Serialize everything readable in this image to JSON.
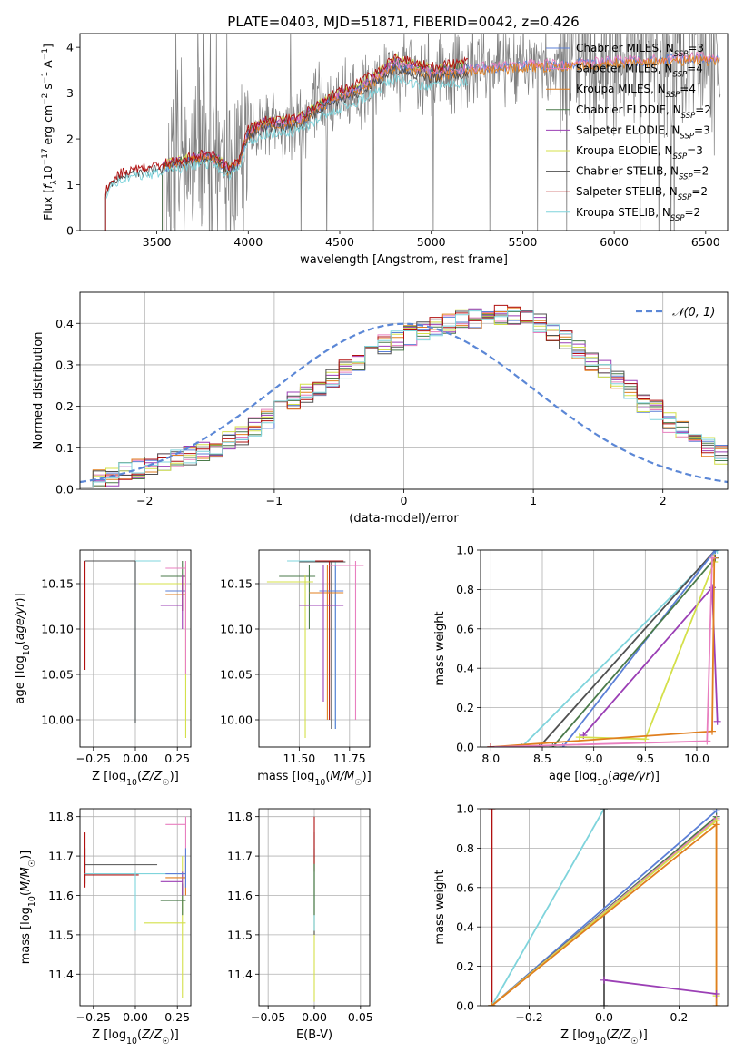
{
  "figure_title": "PLATE=0403, MJD=51871, FIBERID=0042, z=0.426",
  "colors": {
    "chabrier_miles": "#5b7fd6",
    "salpeter_miles": "#e87fbf",
    "kroupa_miles": "#e07f1f",
    "chabrier_elodie": "#4a7a4a",
    "salpeter_elodie": "#9b3fb5",
    "kroupa_elodie": "#d4e04a",
    "chabrier_stelib": "#505050",
    "salpeter_stelib": "#b01010",
    "kroupa_stelib": "#7fd4dc",
    "data_spectrum": "#808080",
    "normal_curve": "#5b87d6"
  },
  "legend_spectrum": [
    {
      "label": "Chabrier MILES, N",
      "sub": "SSP",
      "tail": "=3",
      "color": "#5b7fd6"
    },
    {
      "label": "Salpeter MILES, N",
      "sub": "SSP",
      "tail": "=4",
      "color": "#e87fbf"
    },
    {
      "label": "Kroupa MILES, N",
      "sub": "SSP",
      "tail": "=4",
      "color": "#e07f1f"
    },
    {
      "label": "Chabrier ELODIE, N",
      "sub": "SSP",
      "tail": "=2",
      "color": "#4a7a4a"
    },
    {
      "label": "Salpeter ELODIE, N",
      "sub": "SSP",
      "tail": "=3",
      "color": "#9b3fb5"
    },
    {
      "label": "Kroupa ELODIE, N",
      "sub": "SSP",
      "tail": "=3",
      "color": "#d4e04a"
    },
    {
      "label": "Chabrier STELIB, N",
      "sub": "SSP",
      "tail": "=2",
      "color": "#505050"
    },
    {
      "label": "Salpeter STELIB, N",
      "sub": "SSP",
      "tail": "=2",
      "color": "#b01010"
    },
    {
      "label": "Kroupa STELIB, N",
      "sub": "SSP",
      "tail": "=2",
      "color": "#7fd4dc"
    }
  ],
  "chart_data": [
    {
      "id": "spectrum",
      "type": "line",
      "xlabel": "wavelength [Angstrom, rest frame]",
      "ylabel": "Flux [f_λ 10^-17 erg cm^-2 s^-1 A^-1]",
      "xlim": [
        3080,
        6620
      ],
      "ylim": [
        0,
        4.3
      ],
      "xticks": [
        3500,
        4000,
        4500,
        5000,
        5500,
        6000,
        6500
      ],
      "yticks": [
        0,
        1,
        2,
        3,
        4
      ],
      "model_continuum": {
        "x": [
          3220,
          3300,
          3400,
          3500,
          3600,
          3700,
          3800,
          3900,
          3950,
          4000,
          4100,
          4200,
          4300,
          4400,
          4500,
          4600,
          4700,
          4800,
          4900,
          5000,
          5100,
          5200,
          5300,
          5400,
          5500,
          5600,
          5700,
          5800,
          5900,
          6000,
          6100,
          6200,
          6300,
          6400,
          6500
        ],
        "y": [
          0.85,
          1.2,
          1.3,
          1.35,
          1.45,
          1.55,
          1.6,
          1.3,
          1.5,
          2.1,
          2.3,
          2.3,
          2.4,
          2.7,
          2.9,
          3.05,
          3.3,
          3.6,
          3.5,
          3.4,
          3.45,
          3.5,
          3.55,
          3.55,
          3.6,
          3.6,
          3.6,
          3.65,
          3.65,
          3.7,
          3.7,
          3.7,
          3.75,
          3.75,
          3.75
        ]
      }
    },
    {
      "id": "residuals",
      "type": "area",
      "xlabel": "(data-model)/error",
      "ylabel": "Normed distribution",
      "xlim": [
        -2.5,
        2.5
      ],
      "ylim": [
        0,
        0.475
      ],
      "xticks": [
        -2,
        -1,
        0,
        1,
        2
      ],
      "yticks": [
        0.0,
        0.1,
        0.2,
        0.3,
        0.4
      ],
      "legend": "𝒩(0, 1)",
      "bin_width": 0.1,
      "bin_start": -2.5,
      "histogram_mean": [
        0.02,
        0.025,
        0.03,
        0.04,
        0.05,
        0.06,
        0.065,
        0.07,
        0.08,
        0.09,
        0.1,
        0.115,
        0.13,
        0.15,
        0.17,
        0.19,
        0.21,
        0.23,
        0.25,
        0.27,
        0.29,
        0.31,
        0.33,
        0.35,
        0.36,
        0.37,
        0.38,
        0.39,
        0.4,
        0.41,
        0.41,
        0.42,
        0.42,
        0.42,
        0.41,
        0.4,
        0.38,
        0.36,
        0.34,
        0.31,
        0.29,
        0.26,
        0.24,
        0.21,
        0.19,
        0.16,
        0.14,
        0.12,
        0.1,
        0.085,
        0.07,
        0.06,
        0.05
      ]
    },
    {
      "id": "age_vs_Z",
      "type": "scatter",
      "xlabel": "Z [log10(Z/Z☉)]",
      "ylabel": "age [log10(age/yr)]",
      "xlim": [
        -0.33,
        0.33
      ],
      "ylim": [
        9.97,
        10.187
      ],
      "xticks": [
        -0.25,
        0.0,
        0.25
      ],
      "yticks": [
        10.0,
        10.05,
        10.1,
        10.15
      ]
    },
    {
      "id": "age_vs_mass",
      "type": "scatter",
      "xlabel": "mass [log10(M/M☉)]",
      "ylabel": "",
      "xlim": [
        11.3,
        11.85
      ],
      "ylim": [
        9.97,
        10.187
      ],
      "xticks": [
        11.5,
        11.75
      ],
      "yticks": [
        10.0,
        10.05,
        10.1,
        10.15
      ]
    },
    {
      "id": "massweight_vs_age",
      "type": "line",
      "xlabel": "age [log10(age/yr)]",
      "ylabel": "mass weight",
      "xlim": [
        7.9,
        10.3
      ],
      "ylim": [
        0,
        1.0
      ],
      "xticks": [
        8.0,
        8.5,
        9.0,
        9.5,
        10.0
      ],
      "yticks": [
        0.0,
        0.2,
        0.4,
        0.6,
        0.8,
        1.0
      ]
    },
    {
      "id": "mass_vs_Z",
      "type": "scatter",
      "xlabel": "Z [log10(Z/Z☉)]",
      "ylabel": "mass [log10(M/M☉)]",
      "xlim": [
        -0.33,
        0.33
      ],
      "ylim": [
        11.32,
        11.82
      ],
      "xticks": [
        -0.25,
        0.0,
        0.25
      ],
      "yticks": [
        11.4,
        11.5,
        11.6,
        11.7,
        11.8
      ]
    },
    {
      "id": "mass_vs_ebv",
      "type": "scatter",
      "xlabel": "E(B-V)",
      "ylabel": "",
      "xlim": [
        -0.06,
        0.06
      ],
      "ylim": [
        11.32,
        11.82
      ],
      "xticks": [
        -0.05,
        0.0,
        0.05
      ],
      "yticks": [
        11.4,
        11.5,
        11.6,
        11.7,
        11.8
      ]
    },
    {
      "id": "massweight_vs_Z",
      "type": "line",
      "xlabel": "Z [log10(Z/Z☉)]",
      "ylabel": "mass weight",
      "xlim": [
        -0.33,
        0.33
      ],
      "ylim": [
        0,
        1.0
      ],
      "xticks": [
        -0.2,
        0.0,
        0.2
      ],
      "yticks": [
        0.0,
        0.2,
        0.4,
        0.6,
        0.8,
        1.0
      ]
    }
  ]
}
